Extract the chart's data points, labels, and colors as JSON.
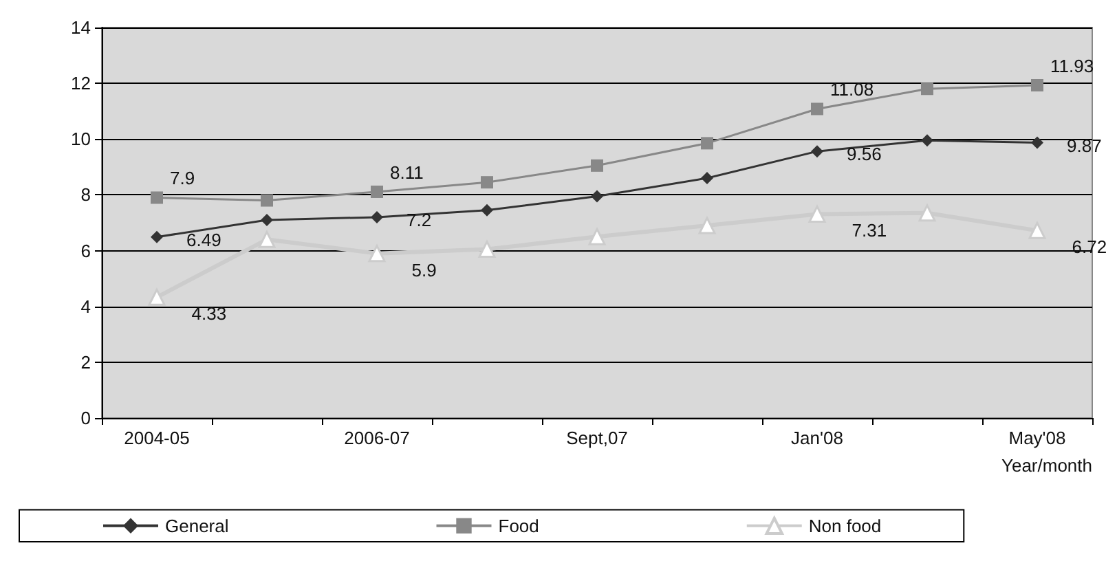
{
  "chart_data": {
    "type": "line",
    "xlabel": "Year/month",
    "categories": [
      "2004-05",
      null,
      "2006-07",
      null,
      "Sept,07",
      null,
      "Jan'08",
      null,
      "May'08"
    ],
    "series": [
      {
        "name": "General",
        "color": "#333333",
        "marker": "diamond",
        "values": [
          6.49,
          7.1,
          7.2,
          7.45,
          7.95,
          8.6,
          9.56,
          9.95,
          9.87
        ],
        "value_labels": [
          "6.49",
          null,
          "7.2",
          null,
          null,
          null,
          "9.56",
          null,
          "9.87"
        ]
      },
      {
        "name": "Food",
        "color": "#888888",
        "marker": "square",
        "values": [
          7.9,
          7.8,
          8.11,
          8.45,
          9.05,
          9.85,
          11.08,
          11.8,
          11.93
        ],
        "value_labels": [
          "7.9",
          null,
          "8.11",
          null,
          null,
          null,
          "11.08",
          null,
          "11.93"
        ]
      },
      {
        "name": "Non food",
        "color": "#cccccc",
        "marker": "triangle",
        "values": [
          4.33,
          6.4,
          5.9,
          6.05,
          6.5,
          6.9,
          7.31,
          7.35,
          6.72
        ],
        "value_labels": [
          "4.33",
          null,
          "5.9",
          null,
          null,
          null,
          "7.31",
          null,
          "6.72"
        ]
      }
    ],
    "ylim": [
      0,
      14
    ],
    "yticks": [
      0,
      2,
      4,
      6,
      8,
      10,
      12,
      14
    ],
    "grid": "y",
    "legend": "bottom",
    "line_style": "solid"
  }
}
